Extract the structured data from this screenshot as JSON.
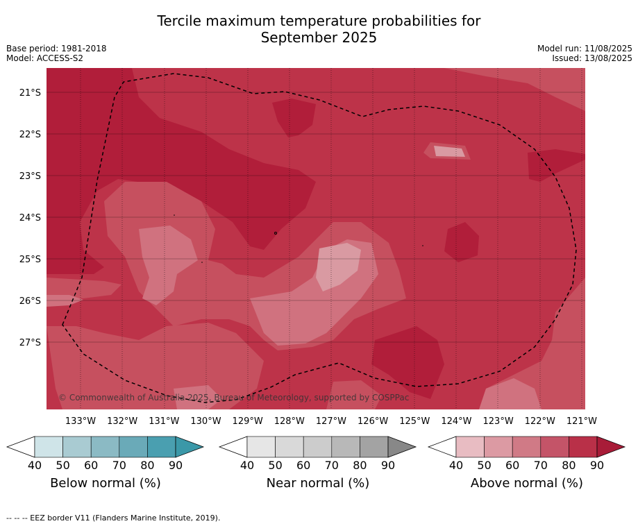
{
  "title_line1": "Tercile maximum temperature probabilities for",
  "title_line2": "September 2025",
  "base_period": "Base period: 1981-2018",
  "model": "Model: ACCESS-S2",
  "model_run": "Model run: 11/08/2025",
  "issued": "Issued: 13/08/2025",
  "copyright": "© Commonwealth of Australia 2025, Bureau of Meteorology, supported by COSPPac",
  "lat_labels": [
    "21°S",
    "22°S",
    "23°S",
    "24°S",
    "25°S",
    "26°S",
    "27°S"
  ],
  "lon_labels": [
    "133°W",
    "132°W",
    "131°W",
    "130°W",
    "129°W",
    "128°W",
    "127°W",
    "126°W",
    "125°W",
    "124°W",
    "123°W",
    "122°W",
    "121°W"
  ],
  "legends": [
    {
      "title": "Below normal (%)",
      "ticks": [
        "40",
        "50",
        "60",
        "70",
        "80",
        "90"
      ],
      "colors": [
        "#cfe4e8",
        "#a9cbd2",
        "#8bbac4",
        "#6aaab8",
        "#4a9fb0"
      ],
      "arrow": "#3b98a8"
    },
    {
      "title": "Near normal (%)",
      "ticks": [
        "40",
        "50",
        "60",
        "70",
        "80",
        "90"
      ],
      "colors": [
        "#e6e6e6",
        "#d9d9d9",
        "#cccccc",
        "#b8b8b8",
        "#a3a3a3"
      ],
      "arrow": "#888888"
    },
    {
      "title": "Above normal (%)",
      "ticks": [
        "40",
        "50",
        "60",
        "70",
        "80",
        "90"
      ],
      "colors": [
        "#e8bcc2",
        "#dc9aa3",
        "#d07a86",
        "#c45468",
        "#b93048"
      ],
      "arrow": "#a81c38"
    }
  ],
  "footer": "--  --  -- EEZ border V11 (Flanders Marine Institute, 2019).",
  "colors": {
    "above_90": "#b11e3a",
    "above_80": "#bd3349",
    "above_70": "#c6505f",
    "above_60": "#d0727f",
    "above_50": "#d99aa2"
  }
}
